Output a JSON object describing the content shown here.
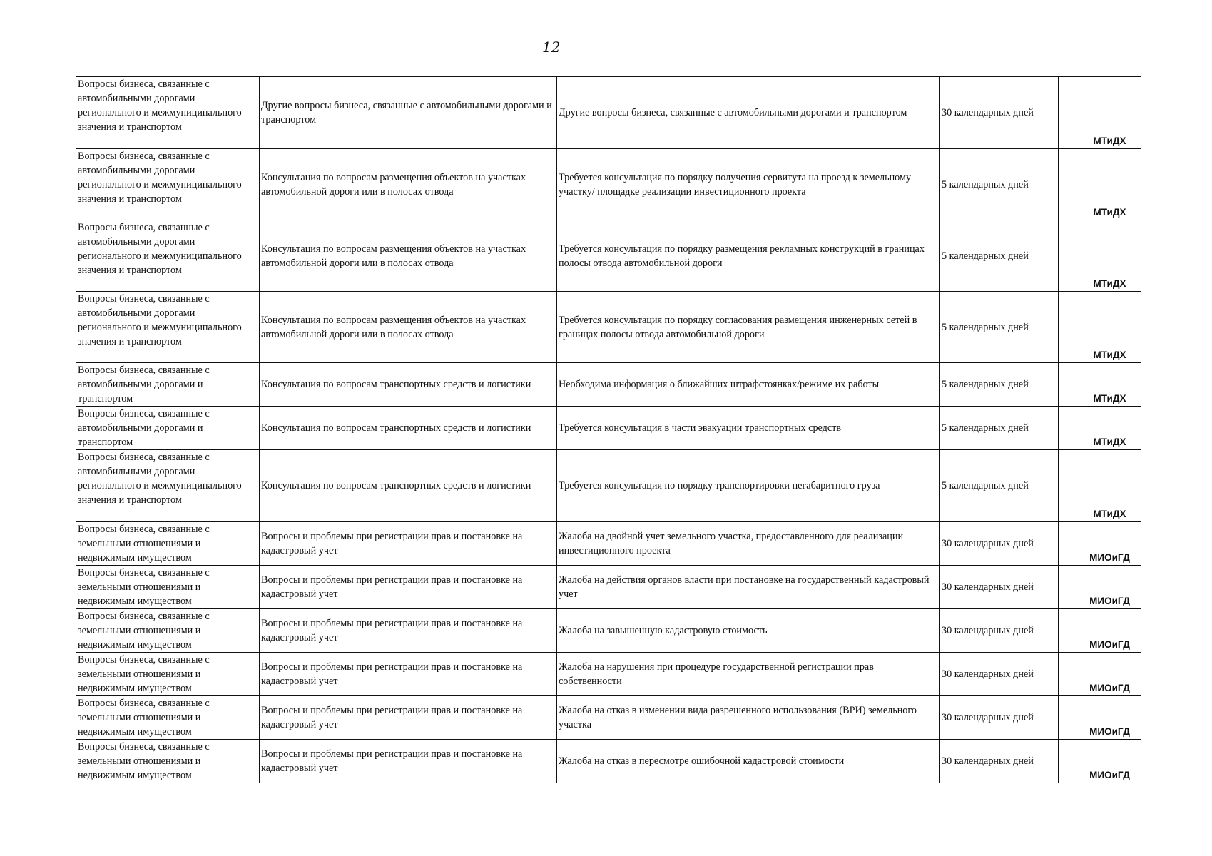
{
  "page_number": "12",
  "rows": [
    {
      "category": "Вопросы бизнеса, связанные с автомобильными дорогами регионального и межмуниципального значения и транспортом",
      "topic": "Другие вопросы бизнеса, связанные с автомобильными дорогами и транспортом",
      "description": "Другие вопросы бизнеса, связанные с автомобильными дорогами и транспортом",
      "term": "30 календарных дней",
      "agency": "МТиДХ"
    },
    {
      "category": "Вопросы бизнеса, связанные с автомобильными дорогами регионального и межмуниципального значения и транспортом",
      "topic": "Консультация по вопросам размещения объектов на участках автомобильной дороги или в полосах отвода",
      "description": "Требуется консультация по порядку получения сервитута на проезд к земельному участку/ площадке реализации инвестиционного проекта",
      "term": "5 календарных дней",
      "agency": "МТиДХ"
    },
    {
      "category": "Вопросы бизнеса, связанные с автомобильными дорогами регионального и межмуниципального значения и транспортом",
      "topic": "Консультация по вопросам размещения объектов на участках автомобильной дороги или в полосах отвода",
      "description": "Требуется консультация по порядку размещения рекламных конструкций в границах полосы отвода автомобильной дороги",
      "term": "5 календарных дней",
      "agency": "МТиДХ"
    },
    {
      "category": "Вопросы бизнеса, связанные с автомобильными дорогами регионального и межмуниципального значения и транспортом",
      "topic": "Консультация по вопросам размещения объектов на участках автомобильной дороги или в полосах отвода",
      "description": "Требуется консультация по порядку согласования размещения инженерных сетей в границах полосы отвода автомобильной дороги",
      "term": "5 календарных дней",
      "agency": "МТиДХ"
    },
    {
      "category": "Вопросы бизнеса, связанные с автомобильными дорогами и транспортом",
      "topic": "Консультация по вопросам транспортных средств и логистики",
      "description": "Необходима информация о ближайших штрафстоянках/режиме их работы",
      "term": "5 календарных дней",
      "agency": "МТиДХ"
    },
    {
      "category": "Вопросы бизнеса, связанные с автомобильными дорогами и транспортом",
      "topic": "Консультация по вопросам транспортных средств и логистики",
      "description": "Требуется консультация в части эвакуации транспортных средств",
      "term": "5 календарных дней",
      "agency": "МТиДХ"
    },
    {
      "category": "Вопросы бизнеса, связанные с автомобильными дорогами регионального и межмуниципального значения и транспортом",
      "topic": "Консультация по вопросам транспортных средств и логистики",
      "description": "Требуется консультация по порядку транспортировки негабаритного груза",
      "term": "5 календарных дней",
      "agency": "МТиДХ"
    },
    {
      "category": "Вопросы бизнеса, связанные с земельными отношениями и недвижимым имуществом",
      "topic": "Вопросы и проблемы при регистрации прав и постановке на кадастровый учет",
      "description": "Жалоба на двойной учет земельного участка, предоставленного для реализации инвестиционного проекта",
      "term": "30 календарных дней",
      "agency": "МИОиГД"
    },
    {
      "category": "Вопросы бизнеса, связанные с земельными отношениями и недвижимым имуществом",
      "topic": "Вопросы и проблемы при регистрации прав и постановке на кадастровый учет",
      "description": "Жалоба на действия органов власти при постановке на государственный кадастровый учет",
      "term": "30 календарных дней",
      "agency": "МИОиГД"
    },
    {
      "category": "Вопросы бизнеса, связанные с земельными отношениями и недвижимым имуществом",
      "topic": "Вопросы и проблемы при регистрации прав и постановке на кадастровый учет",
      "description": "Жалоба на завышенную кадастровую стоимость",
      "term": "30 календарных дней",
      "agency": "МИОиГД"
    },
    {
      "category": "Вопросы бизнеса, связанные с земельными отношениями и недвижимым имуществом",
      "topic": "Вопросы и проблемы при регистрации прав и постановке на кадастровый учет",
      "description": "Жалоба на нарушения при процедуре государственной регистрации прав собственности",
      "term": "30 календарных дней",
      "agency": "МИОиГД"
    },
    {
      "category": "Вопросы бизнеса, связанные с земельными отношениями и недвижимым имуществом",
      "topic": "Вопросы и проблемы при регистрации прав и постановке на кадастровый учет",
      "description": "Жалоба на отказ в изменении вида разрешенного использования (ВРИ) земельного участка",
      "term": "30 календарных дней",
      "agency": "МИОиГД"
    },
    {
      "category": "Вопросы бизнеса, связанные с земельными отношениями и недвижимым имуществом",
      "topic": "Вопросы и проблемы при регистрации прав и постановке на кадастровый учет",
      "description": "Жалоба на отказ в пересмотре ошибочной кадастровой стоимости",
      "term": "30 календарных дней",
      "agency": "МИОиГД"
    }
  ]
}
